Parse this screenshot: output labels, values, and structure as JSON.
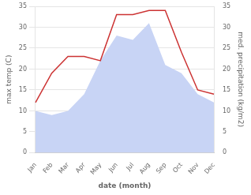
{
  "chart_data": {
    "type": "line",
    "categories": [
      "Jan",
      "Feb",
      "Mar",
      "Apr",
      "May",
      "Jun",
      "Jul",
      "Aug",
      "Sep",
      "Oct",
      "Nov",
      "Dec"
    ],
    "series": [
      {
        "type": "area",
        "color": "#c8d4f5",
        "values": [
          10,
          9,
          10,
          14,
          22,
          28,
          27,
          31,
          21,
          19,
          14,
          12
        ]
      },
      {
        "type": "line",
        "color": "#cc3333",
        "axis": "y2",
        "values": [
          12,
          19,
          23,
          23,
          22,
          33,
          33,
          34,
          34,
          24,
          15,
          14
        ]
      }
    ],
    "xlabel": "date (month)",
    "ylabel": "max temp (C)",
    "y2label": "med. precipitation (kg/m2)",
    "ylim": [
      0,
      35
    ],
    "yticks": [
      0,
      5,
      10,
      15,
      20,
      25,
      30,
      35
    ],
    "y2lim": [
      0,
      35
    ],
    "y2ticks": [
      0,
      5,
      10,
      15,
      20,
      25,
      30,
      35
    ],
    "grid": true
  }
}
